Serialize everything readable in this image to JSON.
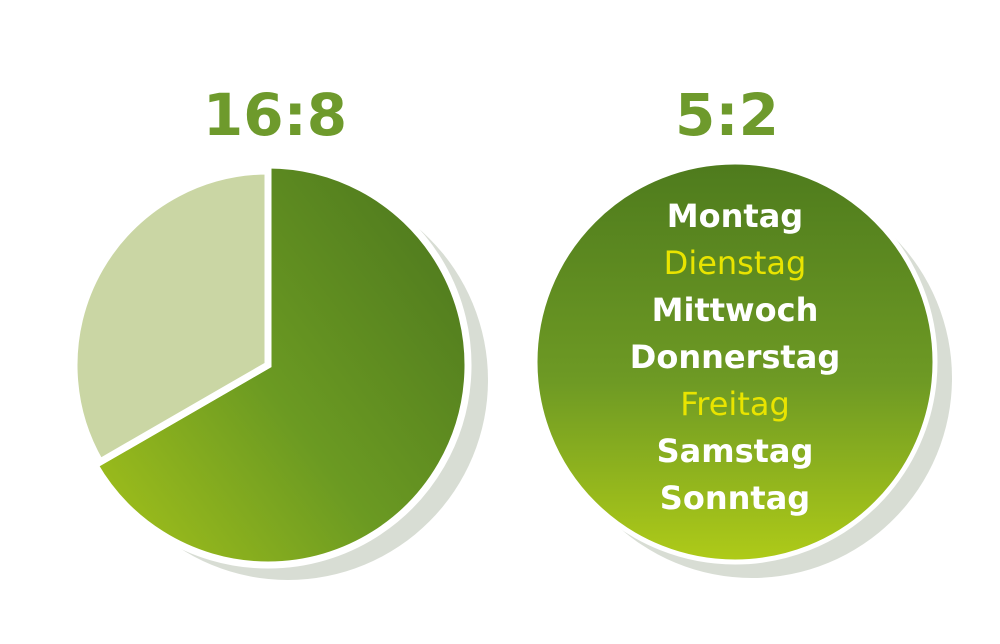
{
  "left": {
    "title": "16:8",
    "pie": {
      "values": [
        16,
        8
      ],
      "colors": [
        "url(#gPie)",
        "#cad6a4"
      ]
    }
  },
  "right": {
    "title": "5:2",
    "days": [
      {
        "label": "Montag",
        "highlight": false
      },
      {
        "label": "Dienstag",
        "highlight": true
      },
      {
        "label": "Mittwoch",
        "highlight": false
      },
      {
        "label": "Donnerstag",
        "highlight": false
      },
      {
        "label": "Freitag",
        "highlight": true
      },
      {
        "label": "Samstag",
        "highlight": false
      },
      {
        "label": "Sonntag",
        "highlight": false
      }
    ]
  }
}
